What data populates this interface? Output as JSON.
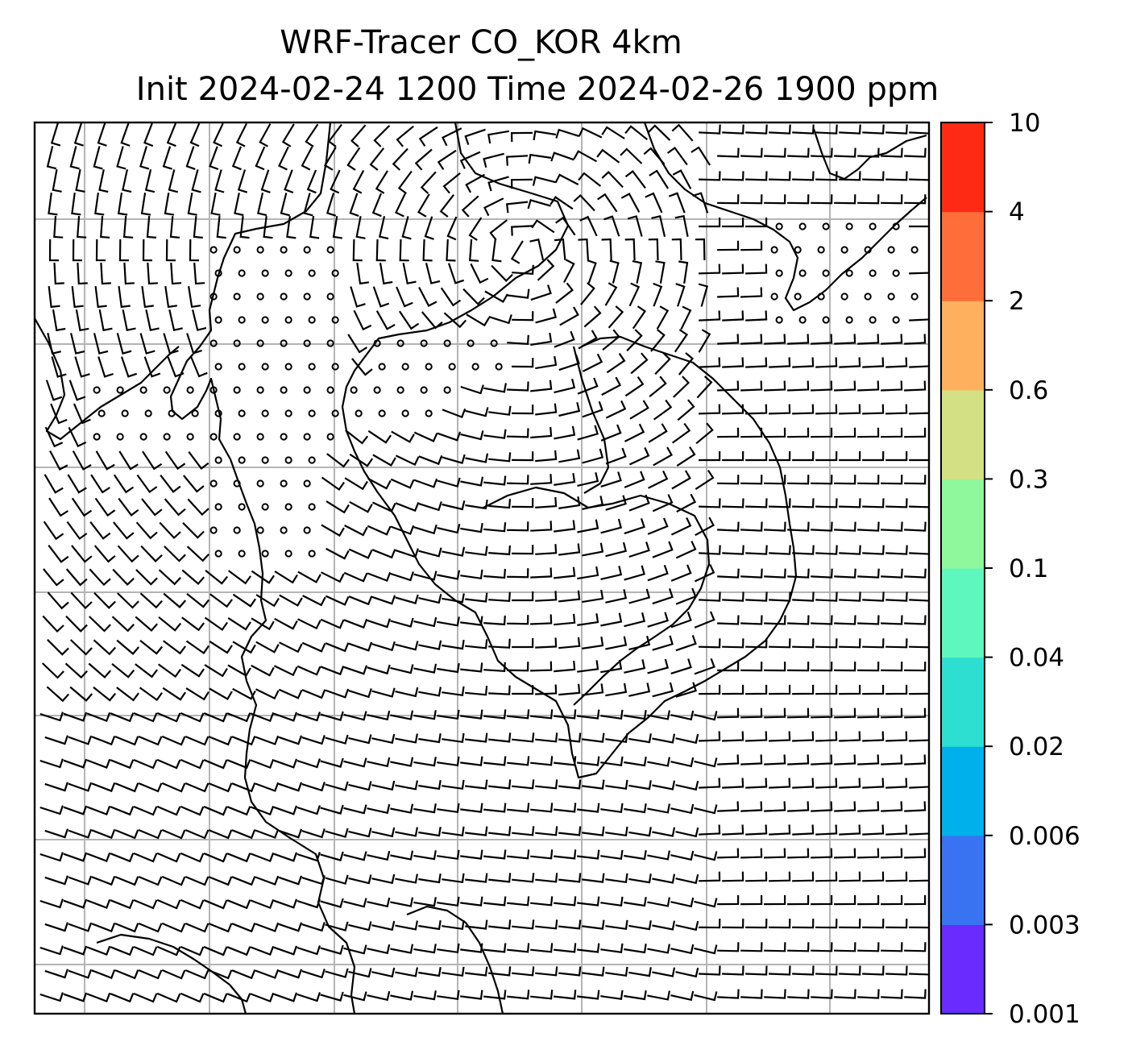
{
  "title": {
    "line1": "WRF-Tracer CO_KOR 4km",
    "line2": "Init 2024-02-24 1200 Time 2024-02-26 1900 ppm"
  },
  "colorbar": {
    "levels": [
      "0.001",
      "0.003",
      "0.006",
      "0.02",
      "0.04",
      "0.1",
      "0.3",
      "0.6",
      "2",
      "4",
      "10"
    ],
    "colors": [
      "#6a2bff",
      "#3a73f2",
      "#00b0ea",
      "#2ddfd1",
      "#5ef7bd",
      "#8ff79c",
      "#d3e084",
      "#ffb05f",
      "#ff6e3a",
      "#ff2a14"
    ]
  },
  "map": {
    "variable": "CO tracer",
    "units": "ppm",
    "features": [
      "coastlines",
      "graticule-grid",
      "wind-barbs",
      "calm-circles"
    ],
    "colors": {
      "frame": "#000000",
      "grid": "#b4b4b4",
      "barb": "#000000"
    }
  }
}
